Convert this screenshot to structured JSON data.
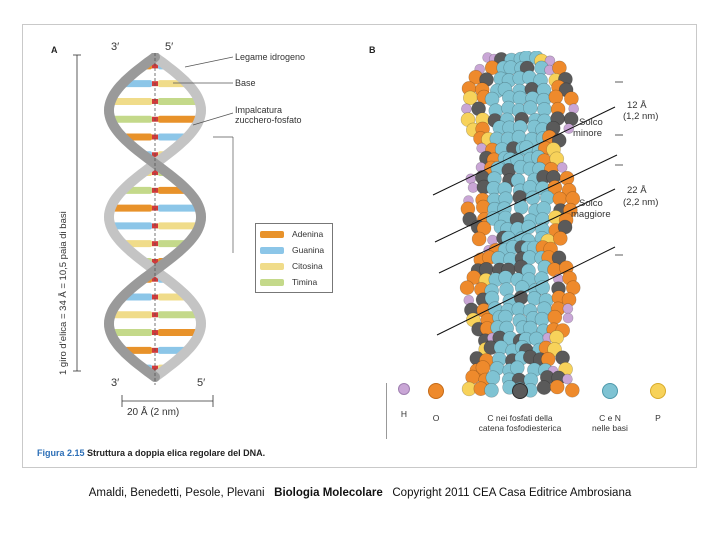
{
  "panel_a": {
    "label": "A",
    "strand_top_left": "3′",
    "strand_top_right": "5′",
    "strand_bottom_left": "3′",
    "strand_bottom_right": "5′",
    "label_hbond": "Legame idrogeno",
    "label_base": "Base",
    "label_backbone_1": "Impalcatura",
    "label_backbone_2": "zucchero-fosfato",
    "vertical_label": "1 giro d’elica = 34 Å = 10,5 paia di basi",
    "width_label": "20 Å (2 nm)",
    "legend": [
      {
        "name": "Adenina",
        "color": "#e8922a"
      },
      {
        "name": "Guanina",
        "color": "#8cc6e8"
      },
      {
        "name": "Citosina",
        "color": "#f0dc8a"
      },
      {
        "name": "Timina",
        "color": "#c4d98a"
      }
    ]
  },
  "panel_b": {
    "label": "B",
    "minor_groove_size_1": "12 Å",
    "minor_groove_size_2": "(1,2 nm)",
    "minor_groove_1": "Solco",
    "minor_groove_2": "minore",
    "major_groove_size_1": "22 Å",
    "major_groove_size_2": "(2,2 nm)",
    "major_groove_1": "Solco",
    "major_groove_2": "maggiore",
    "atom_key": [
      {
        "symbol": "H",
        "color": "#c9a6d6",
        "label_1": "H",
        "label_2": ""
      },
      {
        "symbol": "O",
        "color": "#ee8a2c",
        "label_1": "O",
        "label_2": ""
      },
      {
        "symbol": "C-phosphate",
        "color": "#5a5a5a",
        "label_1": "C nei fosfati della",
        "label_2": "catena fosfodiesterica"
      },
      {
        "symbol": "CN",
        "color": "#7fc3d3",
        "label_1": "C e N",
        "label_2": "nelle basi"
      },
      {
        "symbol": "P",
        "color": "#f7d25a",
        "label_1": "P",
        "label_2": ""
      }
    ]
  },
  "caption": {
    "number": "Figura 2.15",
    "text": "Struttura a doppia elica regolare del DNA."
  },
  "footer": {
    "authors": "Amaldi, Benedetti, Pesole, Plevani",
    "title": "Biologia Molecolare",
    "copyright": "Copyright 2011 CEA Casa Editrice Ambrosiana"
  }
}
